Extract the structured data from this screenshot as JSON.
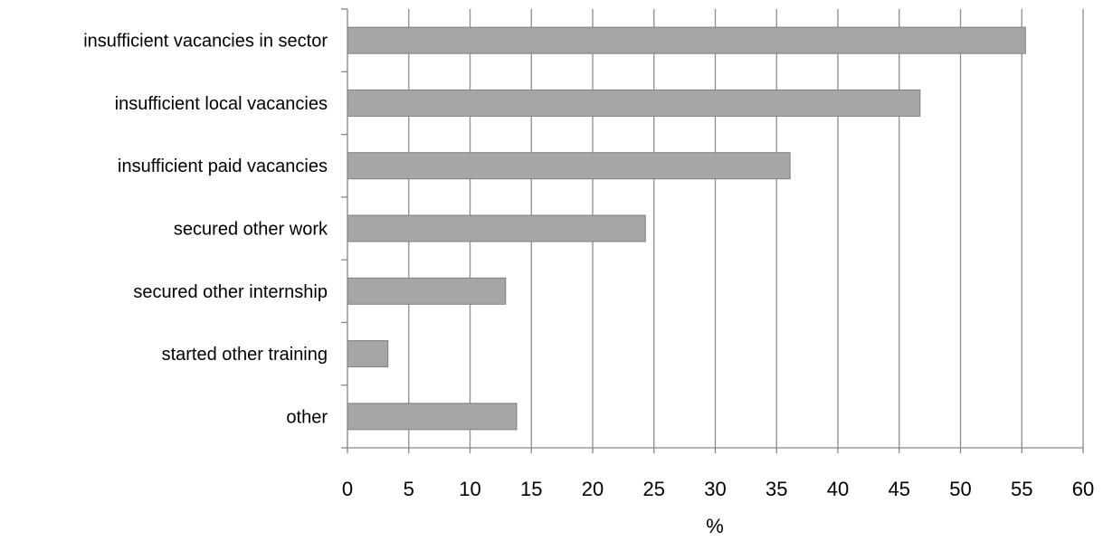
{
  "chart_data": {
    "type": "bar",
    "orientation": "horizontal",
    "categories": [
      "insufficient vacancies in sector",
      "insufficient local vacancies",
      "insufficient paid vacancies",
      "secured other work",
      "secured other internship",
      "started other training",
      "other"
    ],
    "values": [
      55.3,
      46.7,
      36.1,
      24.3,
      12.9,
      3.3,
      13.8
    ],
    "title": "",
    "xlabel": "%",
    "ylabel": "",
    "xlim": [
      0,
      60
    ],
    "xticks": [
      "0",
      "5",
      "10",
      "15",
      "20",
      "25",
      "30",
      "35",
      "40",
      "45",
      "50",
      "55",
      "60"
    ],
    "grid": "vertical",
    "legend": "none",
    "bar_color": "#a6a6a6",
    "bar_edge_color": "#7f7f7f",
    "grid_color": "#8c8c8c"
  }
}
